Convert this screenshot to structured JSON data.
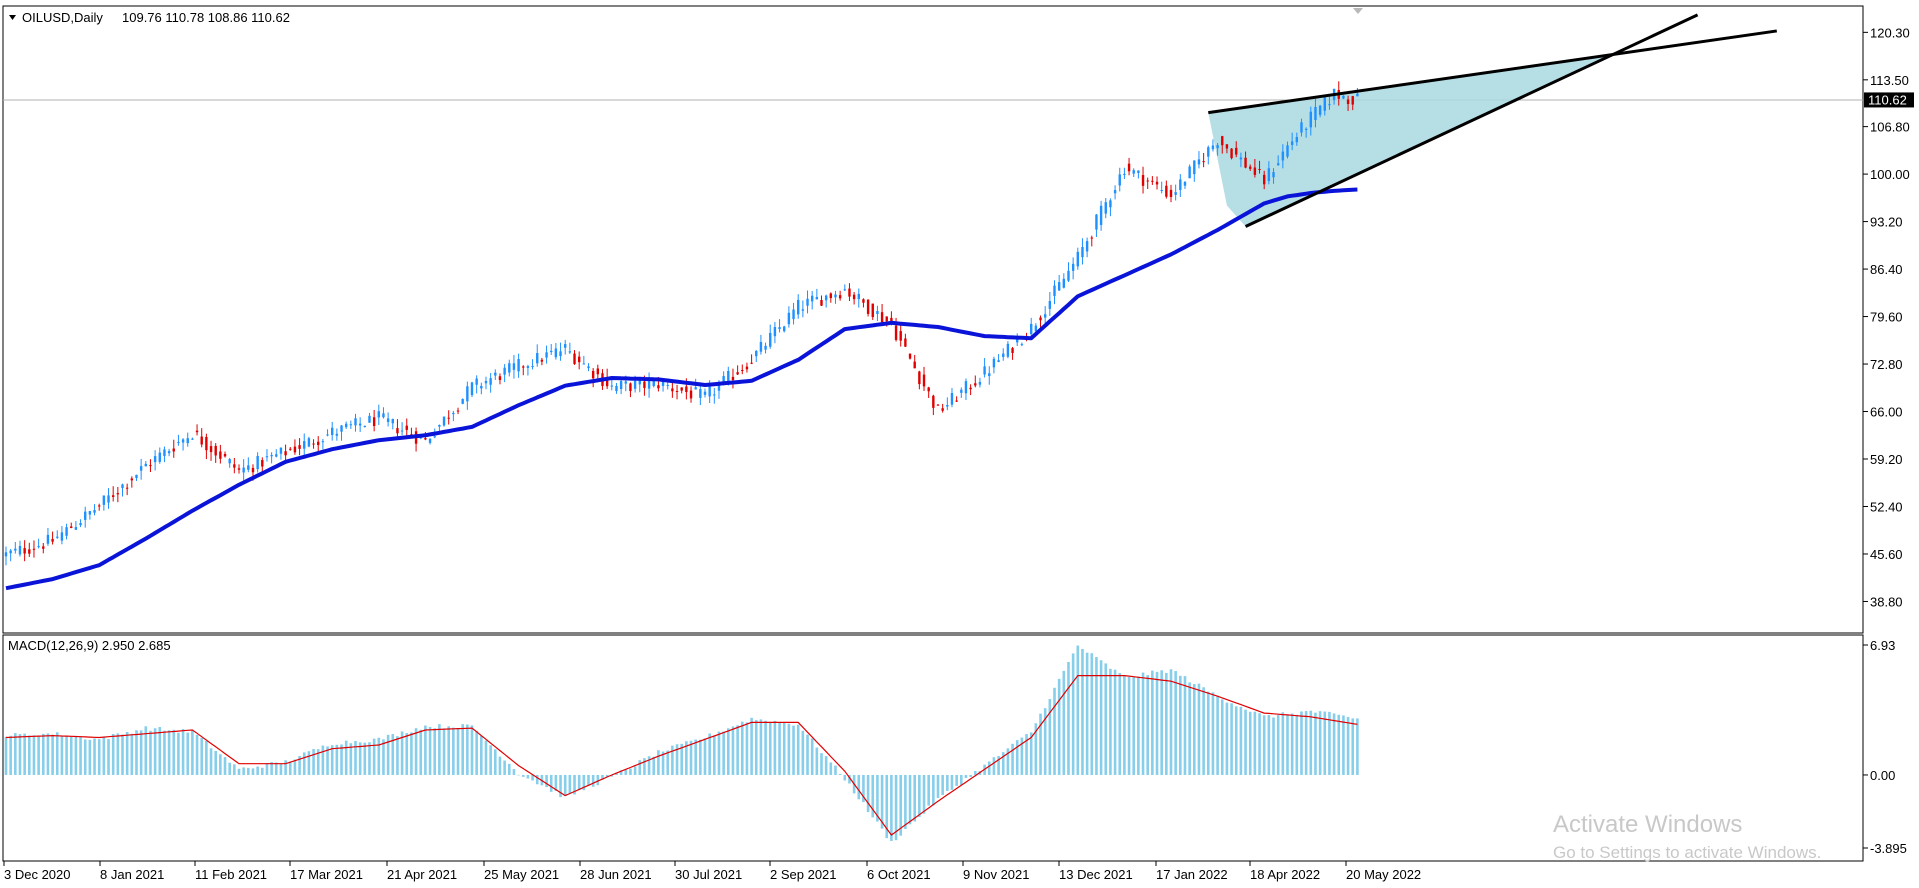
{
  "chart_data": [
    {
      "type": "candlestick",
      "title": "OILUSD,Daily",
      "ohlc_text": "109.76 110.78 108.86 110.62",
      "last_price": "110.62",
      "ylim": [
        35.0,
        123.5
      ],
      "y_ticks": [
        "120.30",
        "113.50",
        "106.80",
        "100.00",
        "93.20",
        "86.40",
        "79.60",
        "72.80",
        "66.00",
        "59.20",
        "52.40",
        "45.60",
        "38.80"
      ],
      "x_ticks": [
        "3 Dec 2020",
        "8 Jan 2021",
        "11 Feb 2021",
        "17 Mar 2021",
        "21 Apr 2021",
        "25 May 2021",
        "28 Jun 2021",
        "30 Jul 2021",
        "2 Sep 2021",
        "6 Oct 2021",
        "9 Nov 2021",
        "13 Dec 2021",
        "17 Jan 2022",
        "18 Apr 2022",
        "20 May 2022"
      ],
      "colors": {
        "up": "#1e90ff",
        "down": "#e00000",
        "ma": "#0a14d8",
        "triangle_fill": "#a8d8e0",
        "trendline": "#000000"
      },
      "moving_average": {
        "x_day": [
          0,
          10,
          20,
          30,
          40,
          50,
          60,
          70,
          80,
          90,
          100,
          110,
          120,
          130,
          140,
          150,
          160,
          170,
          180,
          190,
          200,
          210,
          220,
          230,
          240,
          250,
          260,
          270,
          275,
          280,
          285,
          290
        ],
        "values": [
          40.7,
          42.0,
          44.0,
          47.8,
          51.8,
          55.5,
          58.8,
          60.6,
          61.9,
          62.6,
          63.8,
          66.9,
          69.7,
          70.8,
          70.6,
          69.8,
          70.4,
          73.4,
          77.8,
          78.7,
          78.1,
          76.8,
          76.5,
          82.5,
          85.5,
          88.5,
          92.0,
          95.8,
          96.8,
          97.3,
          97.6,
          97.8
        ]
      },
      "price_path": {
        "x_day": [
          0,
          10,
          20,
          30,
          40,
          50,
          60,
          70,
          80,
          90,
          100,
          110,
          120,
          130,
          140,
          150,
          160,
          170,
          180,
          190,
          200,
          210,
          220,
          230,
          240,
          250,
          260,
          270,
          275,
          280,
          285,
          290
        ],
        "values": [
          45.5,
          47.5,
          52.5,
          58.3,
          63.0,
          57.5,
          60.2,
          63.0,
          65.0,
          61.8,
          69.5,
          72.5,
          75.0,
          69.5,
          70.0,
          68.0,
          73.5,
          81.0,
          83.5,
          78.5,
          66.0,
          71.5,
          78.0,
          88.0,
          101.0,
          97.0,
          105.0,
          99.0,
          104.0,
          108.0,
          111.5,
          110.6
        ]
      },
      "triangle_lines": [
        {
          "points": [
            [
              258,
              108.8
            ],
            [
              380,
              120.5
            ]
          ]
        },
        {
          "points": [
            [
              266,
              92.5
            ],
            [
              363,
              122.8
            ]
          ]
        }
      ]
    },
    {
      "type": "histogram",
      "title": "MACD(12,26,9) 2.950 2.685",
      "ylim": [
        -3.895,
        6.93
      ],
      "y_ticks": [
        "6.93",
        "0.00",
        "-3.895"
      ],
      "histogram": {
        "x_day": [
          0,
          10,
          20,
          30,
          40,
          50,
          60,
          70,
          80,
          90,
          100,
          110,
          120,
          130,
          140,
          150,
          160,
          170,
          180,
          190,
          200,
          210,
          220,
          230,
          240,
          250,
          260,
          270,
          280,
          290
        ],
        "values": [
          2.1,
          2.2,
          1.9,
          2.5,
          2.3,
          0.3,
          0.7,
          1.7,
          1.9,
          2.6,
          2.6,
          0.1,
          -1.2,
          -0.1,
          1.2,
          2.0,
          3.0,
          2.7,
          -0.2,
          -3.6,
          -1.3,
          0.5,
          2.3,
          6.9,
          5.2,
          5.6,
          4.2,
          3.1,
          3.4,
          3.0
        ]
      },
      "signal": {
        "x_day": [
          0,
          10,
          20,
          30,
          40,
          50,
          60,
          70,
          80,
          90,
          100,
          110,
          120,
          130,
          140,
          150,
          160,
          170,
          180,
          190,
          200,
          210,
          220,
          230,
          240,
          250,
          260,
          270,
          280,
          290
        ],
        "values": [
          2.0,
          2.1,
          2.0,
          2.2,
          2.4,
          0.6,
          0.6,
          1.4,
          1.6,
          2.4,
          2.5,
          0.5,
          -1.1,
          0.0,
          1.0,
          1.9,
          2.8,
          2.8,
          0.2,
          -3.2,
          -1.4,
          0.3,
          2.0,
          5.3,
          5.3,
          5.0,
          4.2,
          3.3,
          3.1,
          2.7
        ]
      }
    }
  ],
  "watermark": {
    "line1": "Activate Windows",
    "line2": "Go to Settings to activate Windows."
  }
}
